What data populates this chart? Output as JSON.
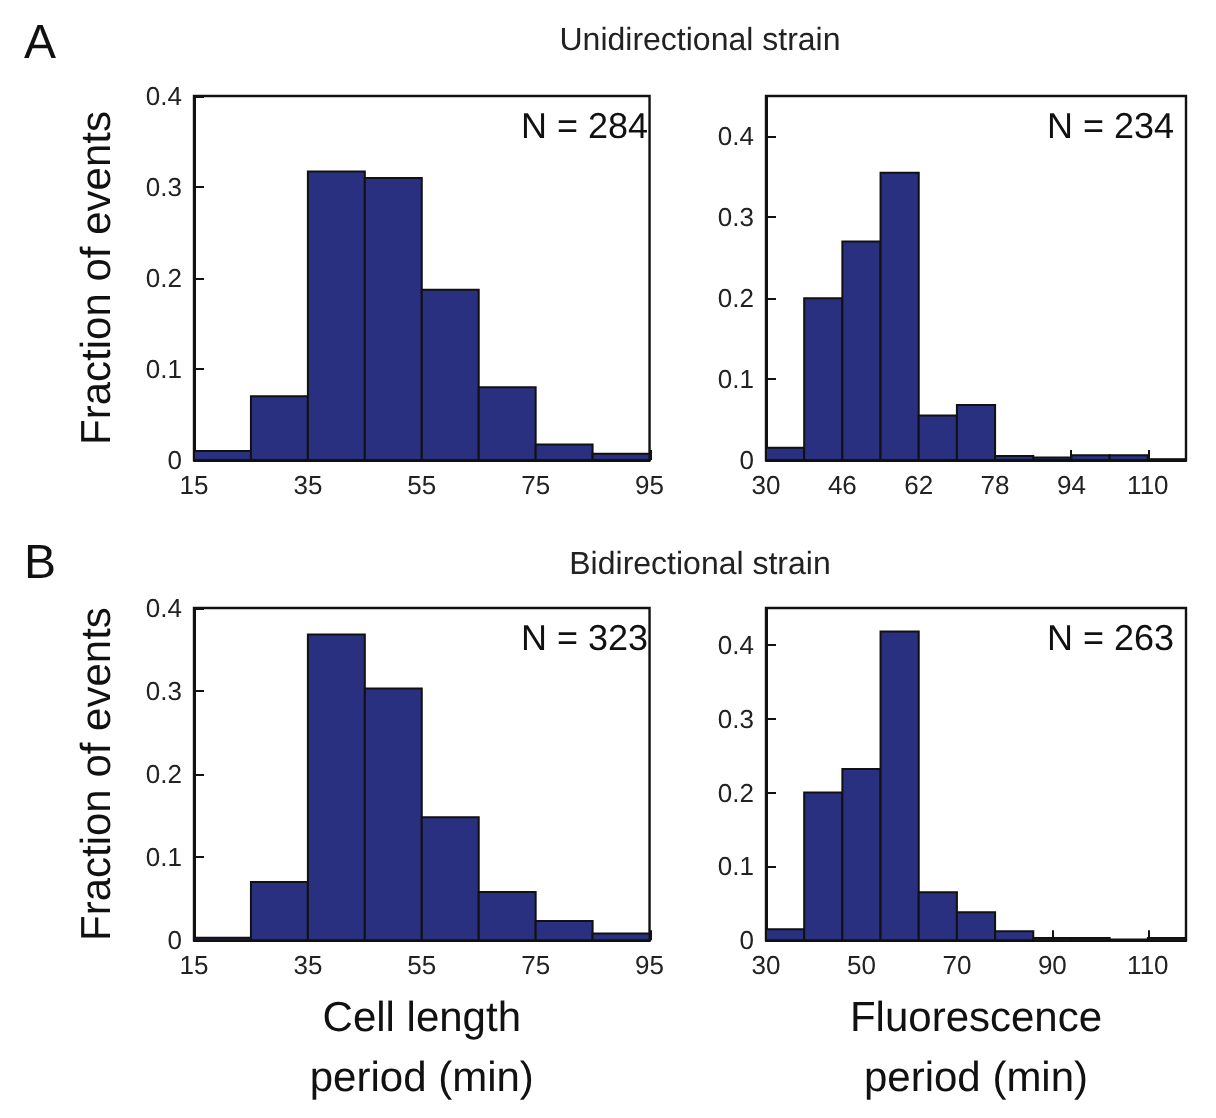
{
  "chart_data": [
    {
      "type": "histogram",
      "title": "Unidirectional strain",
      "ylabel": "Fraction of events",
      "annotations": [
        "A",
        "N = 284"
      ],
      "color": "#29307f",
      "bins": [
        15,
        25,
        35,
        45,
        55,
        65,
        75,
        85,
        95
      ],
      "values": [
        0.01,
        0.07,
        0.317,
        0.31,
        0.187,
        0.08,
        0.017,
        0.007
      ],
      "xlim": [
        15,
        95
      ],
      "xticks": [
        15,
        35,
        55,
        75,
        95
      ],
      "ylim": [
        0,
        0.4
      ],
      "yticks": [
        0,
        0.1,
        0.2,
        0.3,
        0.4
      ],
      "grid": false
    },
    {
      "type": "histogram",
      "annotations": [
        "N = 234"
      ],
      "color": "#29307f",
      "bins": [
        30,
        38,
        46,
        54,
        62,
        70,
        78,
        86,
        94,
        102,
        110,
        118
      ],
      "values": [
        0.015,
        0.2,
        0.27,
        0.355,
        0.055,
        0.068,
        0.005,
        0.003,
        0.006,
        0.006,
        0.001
      ],
      "xlim": [
        30,
        118
      ],
      "xticks": [
        30,
        46,
        62,
        78,
        94,
        110
      ],
      "ylim": [
        0,
        0.45
      ],
      "yticks": [
        0,
        0.1,
        0.2,
        0.3,
        0.4
      ],
      "grid": false
    },
    {
      "type": "histogram",
      "title": "Bidirectional strain",
      "xlabel": "Cell length\nperiod (min)",
      "ylabel": "Fraction of events",
      "annotations": [
        "B",
        "N = 323"
      ],
      "color": "#29307f",
      "bins": [
        15,
        25,
        35,
        45,
        55,
        65,
        75,
        85,
        95
      ],
      "values": [
        0.003,
        0.07,
        0.368,
        0.303,
        0.148,
        0.058,
        0.023,
        0.008
      ],
      "xlim": [
        15,
        95
      ],
      "xticks": [
        15,
        35,
        55,
        75,
        95
      ],
      "ylim": [
        0,
        0.4
      ],
      "yticks": [
        0,
        0.1,
        0.2,
        0.3,
        0.4
      ],
      "grid": false
    },
    {
      "type": "histogram",
      "xlabel": "Fluorescence\nperiod (min)",
      "annotations": [
        "N = 263"
      ],
      "color": "#29307f",
      "bins": [
        30,
        38,
        46,
        54,
        62,
        70,
        78,
        86,
        94,
        102,
        110,
        118
      ],
      "values": [
        0.015,
        0.2,
        0.232,
        0.418,
        0.065,
        0.038,
        0.012,
        0.003,
        0.003,
        0.001,
        0.003
      ],
      "xlim": [
        30,
        118
      ],
      "xticks": [
        30,
        50,
        70,
        90,
        110
      ],
      "ylim": [
        0,
        0.45
      ],
      "yticks": [
        0,
        0.1,
        0.2,
        0.3,
        0.4
      ],
      "grid": false
    }
  ]
}
